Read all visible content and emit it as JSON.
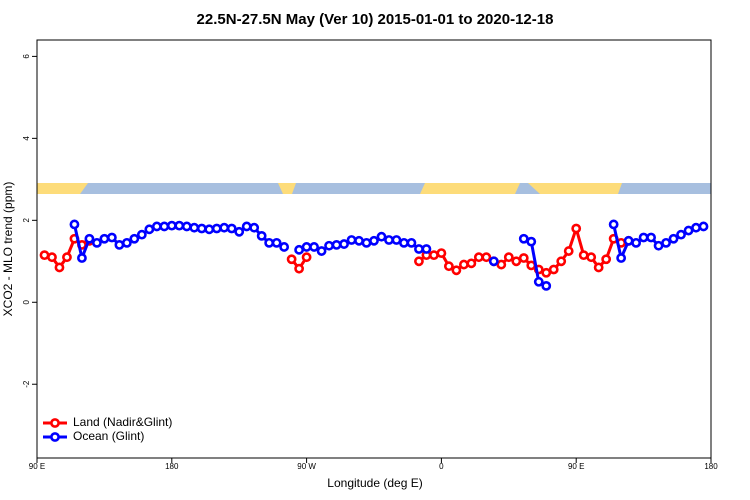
{
  "chart_data": {
    "type": "line",
    "title": "22.5N-27.5N May (Ver 10)   2015-01-01 to 2020-12-18",
    "xlabel": "Longitude (deg E)",
    "ylabel": "XCO2 - MLO trend (ppm)",
    "x": [
      95,
      100,
      105,
      110,
      115,
      120,
      125,
      130,
      135,
      140,
      145,
      150,
      155,
      160,
      165,
      170,
      175,
      180,
      185,
      190,
      195,
      200,
      205,
      210,
      215,
      220,
      225,
      230,
      235,
      240,
      245,
      250,
      255,
      260,
      265,
      270,
      275,
      280,
      285,
      290,
      295,
      300,
      305,
      310,
      315,
      320,
      325,
      330,
      335,
      340,
      345,
      350,
      355,
      360,
      365,
      370,
      375,
      380,
      385,
      390,
      395,
      400,
      405,
      410,
      415,
      420,
      425,
      430,
      435,
      440,
      445,
      450,
      455,
      460,
      465,
      470,
      475,
      480,
      485,
      490,
      495,
      500,
      505,
      510,
      515,
      520,
      525,
      530,
      535
    ],
    "series": [
      {
        "name": "Land (Nadir&Glint)",
        "color": "#ff0000",
        "values": [
          1.15,
          1.1,
          0.85,
          1.1,
          1.55,
          1.4,
          1.5,
          null,
          null,
          null,
          null,
          null,
          null,
          null,
          null,
          null,
          null,
          null,
          null,
          null,
          null,
          null,
          null,
          null,
          null,
          null,
          null,
          null,
          null,
          null,
          null,
          null,
          null,
          1.05,
          0.82,
          1.1,
          null,
          null,
          null,
          null,
          null,
          null,
          null,
          null,
          null,
          null,
          null,
          null,
          null,
          null,
          1.0,
          1.15,
          1.15,
          1.2,
          0.88,
          0.78,
          0.92,
          0.95,
          1.1,
          1.1,
          1.0,
          0.92,
          1.1,
          1.0,
          1.08,
          0.9,
          0.8,
          0.72,
          0.8,
          1.0,
          1.25,
          1.8,
          1.15,
          1.1,
          0.85,
          1.05,
          1.55,
          1.45,
          1.5,
          null,
          null,
          null,
          null,
          null,
          null,
          null,
          null,
          null,
          null
        ]
      },
      {
        "name": "Ocean (Glint)",
        "color": "#0000ff",
        "values": [
          null,
          null,
          null,
          null,
          1.9,
          1.08,
          1.55,
          1.45,
          1.55,
          1.58,
          1.4,
          1.45,
          1.55,
          1.65,
          1.78,
          1.85,
          1.85,
          1.87,
          1.87,
          1.85,
          1.82,
          1.8,
          1.78,
          1.8,
          1.82,
          1.8,
          1.72,
          1.85,
          1.82,
          1.62,
          1.45,
          1.45,
          1.35,
          null,
          1.28,
          1.35,
          1.35,
          1.25,
          1.38,
          1.4,
          1.42,
          1.52,
          1.5,
          1.45,
          1.5,
          1.6,
          1.52,
          1.52,
          1.45,
          1.45,
          1.3,
          1.3,
          null,
          null,
          null,
          null,
          null,
          null,
          null,
          null,
          1.0,
          null,
          null,
          null,
          1.55,
          1.48,
          0.5,
          0.4,
          null,
          null,
          null,
          null,
          null,
          null,
          null,
          null,
          1.9,
          1.08,
          1.5,
          1.45,
          1.58,
          1.58,
          1.38,
          1.45,
          1.55,
          1.65,
          1.75,
          1.82,
          1.85
        ]
      }
    ],
    "xlim": [
      90,
      540
    ],
    "xticks": [
      {
        "value": 90,
        "label": "90 E"
      },
      180,
      {
        "value": 270,
        "label": "90 W"
      },
      {
        "value": 360,
        "label": "0"
      },
      {
        "value": 450,
        "label": "90 E"
      },
      {
        "value": 540,
        "label": "180"
      }
    ],
    "ylim": [
      -3.8,
      6.4
    ],
    "yticks": [
      -2,
      0,
      2,
      4,
      6
    ],
    "legend": "bottom-left"
  }
}
